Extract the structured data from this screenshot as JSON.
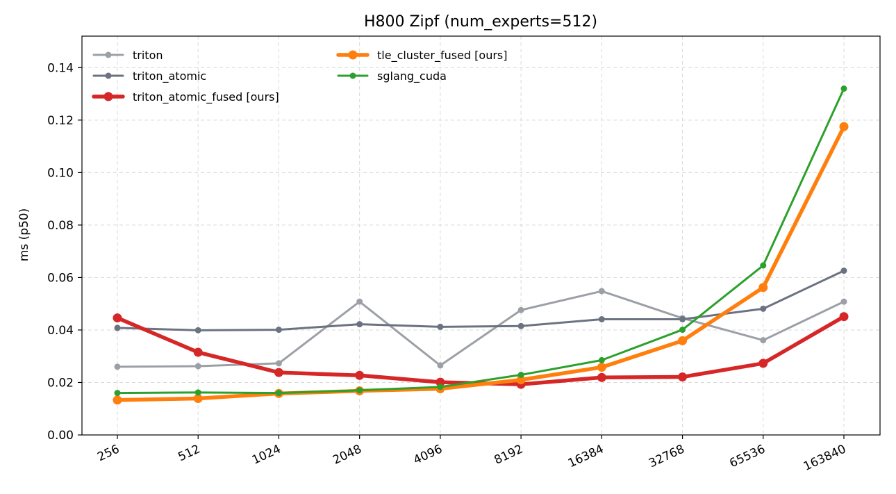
{
  "chart_data": {
    "type": "line",
    "title": "H800 Zipf (num_experts=512)",
    "xlabel": "",
    "ylabel": "ms (p50)",
    "categories": [
      "256",
      "512",
      "1024",
      "2048",
      "4096",
      "8192",
      "16384",
      "32768",
      "65536",
      "163840"
    ],
    "ylim": [
      0,
      0.152
    ],
    "yticks": [
      "0.00",
      "0.02",
      "0.04",
      "0.06",
      "0.08",
      "0.10",
      "0.12",
      "0.14"
    ],
    "grid": true,
    "legend_position": "top-left",
    "series": [
      {
        "name": "triton",
        "color": "#9ca0a6",
        "values": [
          0.026,
          0.0262,
          0.0273,
          0.0508,
          0.0265,
          0.0476,
          0.0548,
          0.0445,
          0.0361,
          0.0508
        ]
      },
      {
        "name": "triton_atomic",
        "color": "#6b7280",
        "values": [
          0.0408,
          0.0399,
          0.0401,
          0.0422,
          0.0412,
          0.0415,
          0.0441,
          0.0441,
          0.0481,
          0.0626
        ]
      },
      {
        "name": "triton_atomic_fused [ours]",
        "color": "#d62728",
        "values": [
          0.0446,
          0.0315,
          0.0238,
          0.0227,
          0.0201,
          0.0193,
          0.0219,
          0.0221,
          0.0273,
          0.0451
        ]
      },
      {
        "name": "tle_cluster_fused [ours]",
        "color": "#ff7f0e",
        "values": [
          0.0133,
          0.0139,
          0.0158,
          0.0168,
          0.0176,
          0.021,
          0.0258,
          0.0359,
          0.0562,
          0.1175
        ]
      },
      {
        "name": "sglang_cuda",
        "color": "#2ca02c",
        "values": [
          0.016,
          0.0162,
          0.016,
          0.017,
          0.0183,
          0.0229,
          0.0285,
          0.0401,
          0.0646,
          0.132
        ]
      }
    ]
  }
}
